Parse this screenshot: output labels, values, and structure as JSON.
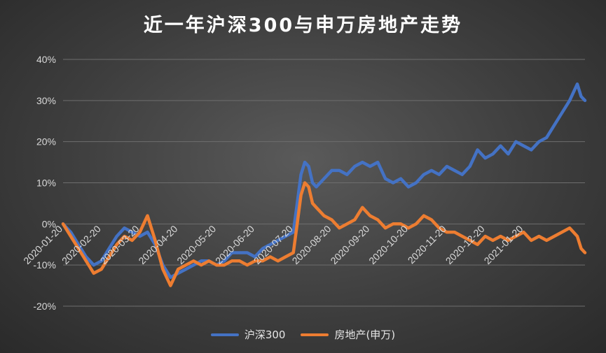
{
  "chart_data": {
    "type": "line",
    "title": "近一年沪深300与申万房地产走势",
    "ylim": [
      -0.2,
      0.4
    ],
    "yticks": [
      "40%",
      "30%",
      "20%",
      "10%",
      "0%",
      "-10%",
      "-20%"
    ],
    "ytick_values": [
      0.4,
      0.3,
      0.2,
      0.1,
      0.0,
      -0.1,
      -0.2
    ],
    "xticks": [
      "2020-01-20",
      "2020-02-20",
      "2020-03-20",
      "2020-04-20",
      "2020-05-20",
      "2020-06-20",
      "2020-07-20",
      "2020-08-20",
      "2020-09-20",
      "2020-10-20",
      "2020-11-20",
      "2020-12-20",
      "2021-01-20"
    ],
    "grid": true,
    "legend_position": "bottom",
    "series": [
      {
        "name": "沪深300",
        "color": "#4472c4",
        "points": [
          [
            0,
            0.0
          ],
          [
            0.2,
            -0.02
          ],
          [
            0.4,
            -0.05
          ],
          [
            0.6,
            -0.08
          ],
          [
            0.8,
            -0.1
          ],
          [
            1.0,
            -0.09
          ],
          [
            1.2,
            -0.06
          ],
          [
            1.4,
            -0.03
          ],
          [
            1.6,
            -0.01
          ],
          [
            1.8,
            -0.02
          ],
          [
            2.0,
            -0.03
          ],
          [
            2.2,
            -0.02
          ],
          [
            2.4,
            -0.05
          ],
          [
            2.6,
            -0.1
          ],
          [
            2.8,
            -0.13
          ],
          [
            3.0,
            -0.12
          ],
          [
            3.2,
            -0.11
          ],
          [
            3.4,
            -0.1
          ],
          [
            3.6,
            -0.09
          ],
          [
            3.8,
            -0.09
          ],
          [
            4.0,
            -0.1
          ],
          [
            4.2,
            -0.09
          ],
          [
            4.4,
            -0.07
          ],
          [
            4.6,
            -0.07
          ],
          [
            4.8,
            -0.07
          ],
          [
            5.0,
            -0.08
          ],
          [
            5.2,
            -0.06
          ],
          [
            5.4,
            -0.05
          ],
          [
            5.6,
            -0.04
          ],
          [
            5.8,
            -0.03
          ],
          [
            6.0,
            -0.02
          ],
          [
            6.1,
            0.05
          ],
          [
            6.2,
            0.12
          ],
          [
            6.3,
            0.15
          ],
          [
            6.4,
            0.14
          ],
          [
            6.5,
            0.1
          ],
          [
            6.6,
            0.09
          ],
          [
            6.8,
            0.11
          ],
          [
            7.0,
            0.13
          ],
          [
            7.2,
            0.13
          ],
          [
            7.4,
            0.12
          ],
          [
            7.6,
            0.14
          ],
          [
            7.8,
            0.15
          ],
          [
            8.0,
            0.14
          ],
          [
            8.2,
            0.15
          ],
          [
            8.4,
            0.11
          ],
          [
            8.6,
            0.1
          ],
          [
            8.8,
            0.11
          ],
          [
            9.0,
            0.09
          ],
          [
            9.2,
            0.1
          ],
          [
            9.4,
            0.12
          ],
          [
            9.6,
            0.13
          ],
          [
            9.8,
            0.12
          ],
          [
            10.0,
            0.14
          ],
          [
            10.2,
            0.13
          ],
          [
            10.4,
            0.12
          ],
          [
            10.6,
            0.14
          ],
          [
            10.8,
            0.18
          ],
          [
            11.0,
            0.16
          ],
          [
            11.2,
            0.17
          ],
          [
            11.4,
            0.19
          ],
          [
            11.6,
            0.17
          ],
          [
            11.8,
            0.2
          ],
          [
            12.0,
            0.19
          ],
          [
            12.2,
            0.18
          ],
          [
            12.4,
            0.2
          ],
          [
            12.6,
            0.21
          ],
          [
            12.8,
            0.24
          ],
          [
            13.0,
            0.27
          ],
          [
            13.2,
            0.3
          ],
          [
            13.4,
            0.34
          ],
          [
            13.5,
            0.31
          ],
          [
            13.6,
            0.3
          ]
        ]
      },
      {
        "name": "房地产(申万)",
        "color": "#ed7d31",
        "points": [
          [
            0,
            0.0
          ],
          [
            0.2,
            -0.03
          ],
          [
            0.4,
            -0.06
          ],
          [
            0.6,
            -0.09
          ],
          [
            0.8,
            -0.12
          ],
          [
            1.0,
            -0.11
          ],
          [
            1.2,
            -0.08
          ],
          [
            1.4,
            -0.05
          ],
          [
            1.6,
            -0.03
          ],
          [
            1.8,
            -0.04
          ],
          [
            2.0,
            -0.02
          ],
          [
            2.2,
            0.02
          ],
          [
            2.4,
            -0.04
          ],
          [
            2.6,
            -0.11
          ],
          [
            2.8,
            -0.15
          ],
          [
            3.0,
            -0.11
          ],
          [
            3.2,
            -0.1
          ],
          [
            3.4,
            -0.09
          ],
          [
            3.6,
            -0.1
          ],
          [
            3.8,
            -0.09
          ],
          [
            4.0,
            -0.1
          ],
          [
            4.2,
            -0.1
          ],
          [
            4.4,
            -0.09
          ],
          [
            4.6,
            -0.09
          ],
          [
            4.8,
            -0.1
          ],
          [
            5.0,
            -0.09
          ],
          [
            5.2,
            -0.09
          ],
          [
            5.4,
            -0.08
          ],
          [
            5.6,
            -0.09
          ],
          [
            5.8,
            -0.08
          ],
          [
            6.0,
            -0.07
          ],
          [
            6.1,
            0.0
          ],
          [
            6.2,
            0.07
          ],
          [
            6.3,
            0.1
          ],
          [
            6.4,
            0.09
          ],
          [
            6.5,
            0.05
          ],
          [
            6.6,
            0.04
          ],
          [
            6.8,
            0.02
          ],
          [
            7.0,
            0.01
          ],
          [
            7.2,
            -0.01
          ],
          [
            7.4,
            0.0
          ],
          [
            7.6,
            0.01
          ],
          [
            7.8,
            0.04
          ],
          [
            8.0,
            0.02
          ],
          [
            8.2,
            0.01
          ],
          [
            8.4,
            -0.01
          ],
          [
            8.6,
            0.0
          ],
          [
            8.8,
            0.0
          ],
          [
            9.0,
            -0.01
          ],
          [
            9.2,
            0.0
          ],
          [
            9.4,
            0.02
          ],
          [
            9.6,
            0.01
          ],
          [
            9.8,
            -0.01
          ],
          [
            10.0,
            -0.02
          ],
          [
            10.2,
            -0.02
          ],
          [
            10.4,
            -0.03
          ],
          [
            10.6,
            -0.04
          ],
          [
            10.8,
            -0.05
          ],
          [
            11.0,
            -0.03
          ],
          [
            11.2,
            -0.04
          ],
          [
            11.4,
            -0.03
          ],
          [
            11.6,
            -0.04
          ],
          [
            11.8,
            -0.03
          ],
          [
            12.0,
            -0.02
          ],
          [
            12.2,
            -0.04
          ],
          [
            12.4,
            -0.03
          ],
          [
            12.6,
            -0.04
          ],
          [
            12.8,
            -0.03
          ],
          [
            13.0,
            -0.02
          ],
          [
            13.2,
            -0.01
          ],
          [
            13.4,
            -0.03
          ],
          [
            13.5,
            -0.06
          ],
          [
            13.6,
            -0.07
          ]
        ]
      }
    ]
  }
}
